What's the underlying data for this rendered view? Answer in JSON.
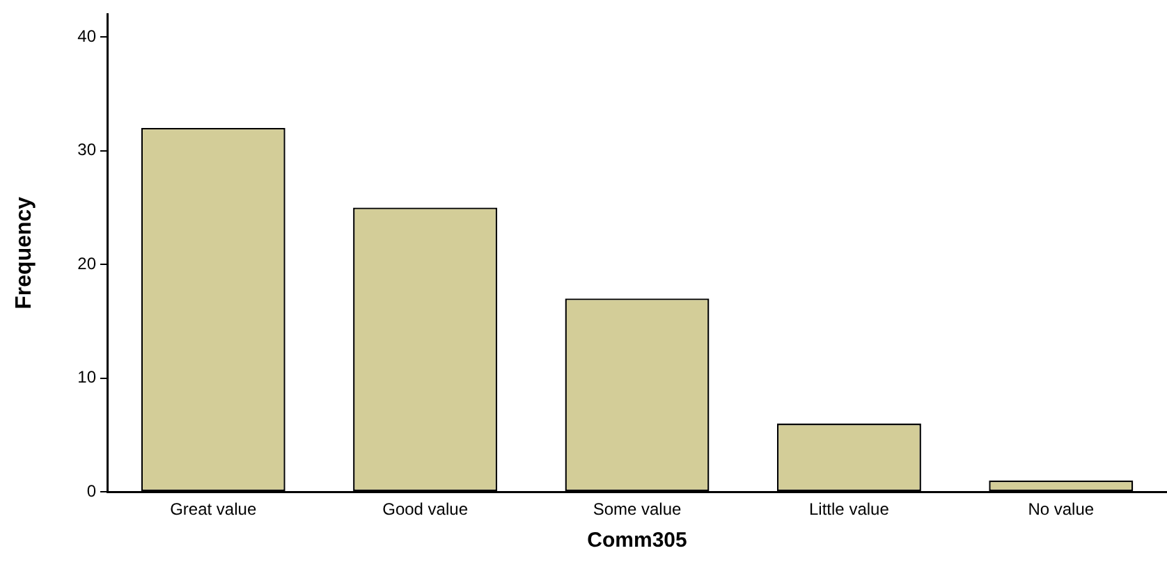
{
  "chart_data": {
    "type": "bar",
    "xlabel": "Comm305",
    "ylabel": "Frequency",
    "categories": [
      "Great value",
      "Good value",
      "Some value",
      "Little value",
      "No value"
    ],
    "values": [
      32,
      25,
      17,
      6,
      1
    ],
    "color": "#d3cd98",
    "ylim": [
      0,
      42
    ],
    "yticks": [
      0,
      10,
      20,
      30,
      40
    ],
    "grid": false,
    "legend": false
  }
}
